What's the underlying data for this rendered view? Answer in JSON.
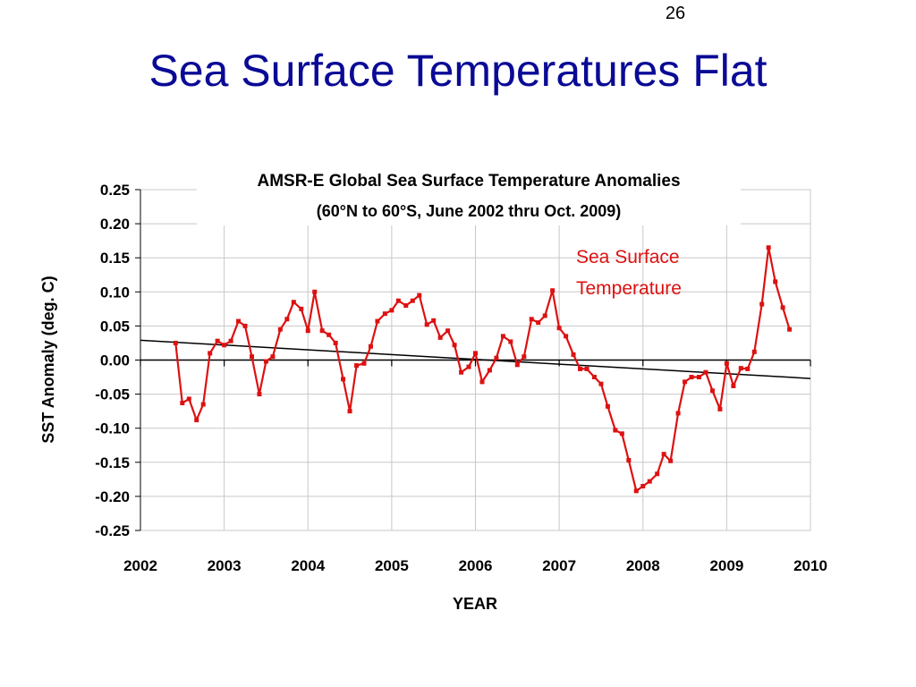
{
  "slide": {
    "number": "26",
    "title": "Sea Surface Temperatures Flat"
  },
  "chart_data": {
    "type": "line",
    "title": "AMSR-E Global Sea Surface Temperature Anomalies",
    "subtitle": "(60°N to 60°S, June 2002 thru Oct. 2009)",
    "xlabel": "YEAR",
    "ylabel": "SST Anomaly (deg. C)",
    "xlim": [
      2002,
      2010
    ],
    "ylim": [
      -0.25,
      0.25
    ],
    "xticks": [
      "2002",
      "2003",
      "2004",
      "2005",
      "2006",
      "2007",
      "2008",
      "2009",
      "2010"
    ],
    "yticks": [
      "0.25",
      "0.20",
      "0.15",
      "0.10",
      "0.05",
      "0.00",
      "-0.05",
      "-0.10",
      "-0.15",
      "-0.20",
      "-0.25"
    ],
    "grid": true,
    "annotation": [
      "Sea Surface",
      "Temperature"
    ],
    "colors": {
      "series": "#dd1111",
      "trend": "#000000",
      "zero_line": "#000000",
      "grid": "#c8c8c8",
      "title": "#0a0a96"
    },
    "series": [
      {
        "x": [
          2002.42,
          2002.5,
          2002.58,
          2002.67,
          2002.75,
          2002.83,
          2002.92,
          2003.0,
          2003.08,
          2003.17,
          2003.25,
          2003.33,
          2003.42,
          2003.5,
          2003.58,
          2003.67,
          2003.75,
          2003.83,
          2003.92,
          2004.0,
          2004.08,
          2004.17,
          2004.25,
          2004.33,
          2004.42,
          2004.5,
          2004.58,
          2004.67,
          2004.75,
          2004.83,
          2004.92,
          2005.0,
          2005.08,
          2005.17,
          2005.25,
          2005.33,
          2005.42,
          2005.5,
          2005.58,
          2005.67,
          2005.75,
          2005.83,
          2005.92,
          2006.0,
          2006.08,
          2006.17,
          2006.25,
          2006.33,
          2006.42,
          2006.5,
          2006.58,
          2006.67,
          2006.75,
          2006.83,
          2006.92,
          2007.0,
          2007.08,
          2007.17,
          2007.25,
          2007.33,
          2007.42,
          2007.5,
          2007.58,
          2007.67,
          2007.75,
          2007.83,
          2007.92,
          2008.0,
          2008.08,
          2008.17,
          2008.25,
          2008.33,
          2008.42,
          2008.5,
          2008.58,
          2008.67,
          2008.75,
          2008.83,
          2008.92,
          2009.0,
          2009.08,
          2009.17,
          2009.25,
          2009.33,
          2009.42,
          2009.5,
          2009.58,
          2009.67,
          2009.75
        ],
        "values": [
          0.025,
          -0.063,
          -0.057,
          -0.088,
          -0.065,
          0.01,
          0.028,
          0.022,
          0.028,
          0.057,
          0.05,
          0.005,
          -0.05,
          -0.002,
          0.005,
          0.045,
          0.06,
          0.085,
          0.075,
          0.043,
          0.1,
          0.043,
          0.037,
          0.025,
          -0.028,
          -0.075,
          -0.008,
          -0.005,
          0.02,
          0.057,
          0.068,
          0.073,
          0.087,
          0.08,
          0.087,
          0.095,
          0.052,
          0.058,
          0.033,
          0.043,
          0.022,
          -0.018,
          -0.01,
          0.01,
          -0.032,
          -0.015,
          0.003,
          0.035,
          0.027,
          -0.007,
          0.005,
          0.06,
          0.055,
          0.065,
          0.102,
          0.047,
          0.035,
          0.008,
          -0.013,
          -0.013,
          -0.025,
          -0.035,
          -0.068,
          -0.103,
          -0.108,
          -0.147,
          -0.192,
          -0.185,
          -0.178,
          -0.167,
          -0.138,
          -0.148,
          -0.078,
          -0.032,
          -0.025,
          -0.025,
          -0.018,
          -0.045,
          -0.072,
          -0.005,
          -0.038,
          -0.012,
          -0.013,
          0.012,
          0.082,
          0.165,
          0.115,
          0.077,
          0.045
        ]
      }
    ],
    "trend": {
      "x": [
        2002.0,
        2010.0
      ],
      "y": [
        0.029,
        -0.027
      ]
    }
  }
}
